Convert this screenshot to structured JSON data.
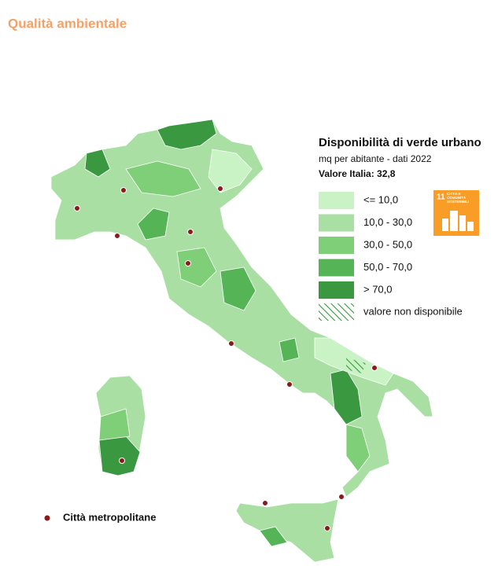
{
  "header": {
    "title": "Qualità ambientale"
  },
  "legend": {
    "title": "Disponibilità di verde urbano",
    "subtitle": "mq per abitante - dati 2022",
    "national_value": "Valore Italia: 32,8",
    "items": [
      {
        "label": "<= 10,0",
        "color": "#c9f2c5"
      },
      {
        "label": "10,0 - 30,0",
        "color": "#a9dfa2"
      },
      {
        "label": "30,0 - 50,0",
        "color": "#7fcf78"
      },
      {
        "label": "50,0 - 70,0",
        "color": "#55b556"
      },
      {
        "label": "> 70,0",
        "color": "#3a9840"
      }
    ],
    "missing": "valore non disponibile",
    "cities": "Città metropolitane"
  },
  "sdg_icon": {
    "number": "11",
    "label": "CITTÀ E COMUNITÀ SOSTENIBILI"
  }
}
